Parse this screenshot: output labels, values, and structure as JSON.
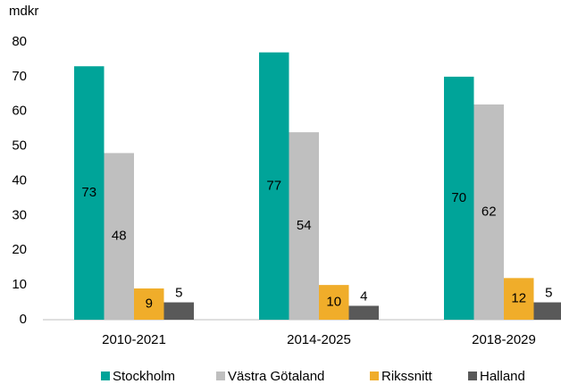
{
  "chart_data": {
    "type": "bar",
    "y_label": "mdkr",
    "categories": [
      "2010-2021",
      "2014-2025",
      "2018-2029"
    ],
    "series": [
      {
        "name": "Stockholm",
        "color": "#00a499",
        "values": [
          73,
          77,
          70
        ]
      },
      {
        "name": "Västra Götaland",
        "color": "#bfbfbf",
        "values": [
          48,
          54,
          62
        ]
      },
      {
        "name": "Rikssnitt",
        "color": "#f0ad2a",
        "values": [
          9,
          10,
          12
        ]
      },
      {
        "name": "Halland",
        "color": "#595959",
        "values": [
          5,
          4,
          5
        ]
      }
    ],
    "ylim": [
      0,
      80
    ],
    "yticks": [
      0,
      10,
      20,
      30,
      40,
      50,
      60,
      70,
      80
    ],
    "grid": false,
    "legend": "bottom"
  }
}
